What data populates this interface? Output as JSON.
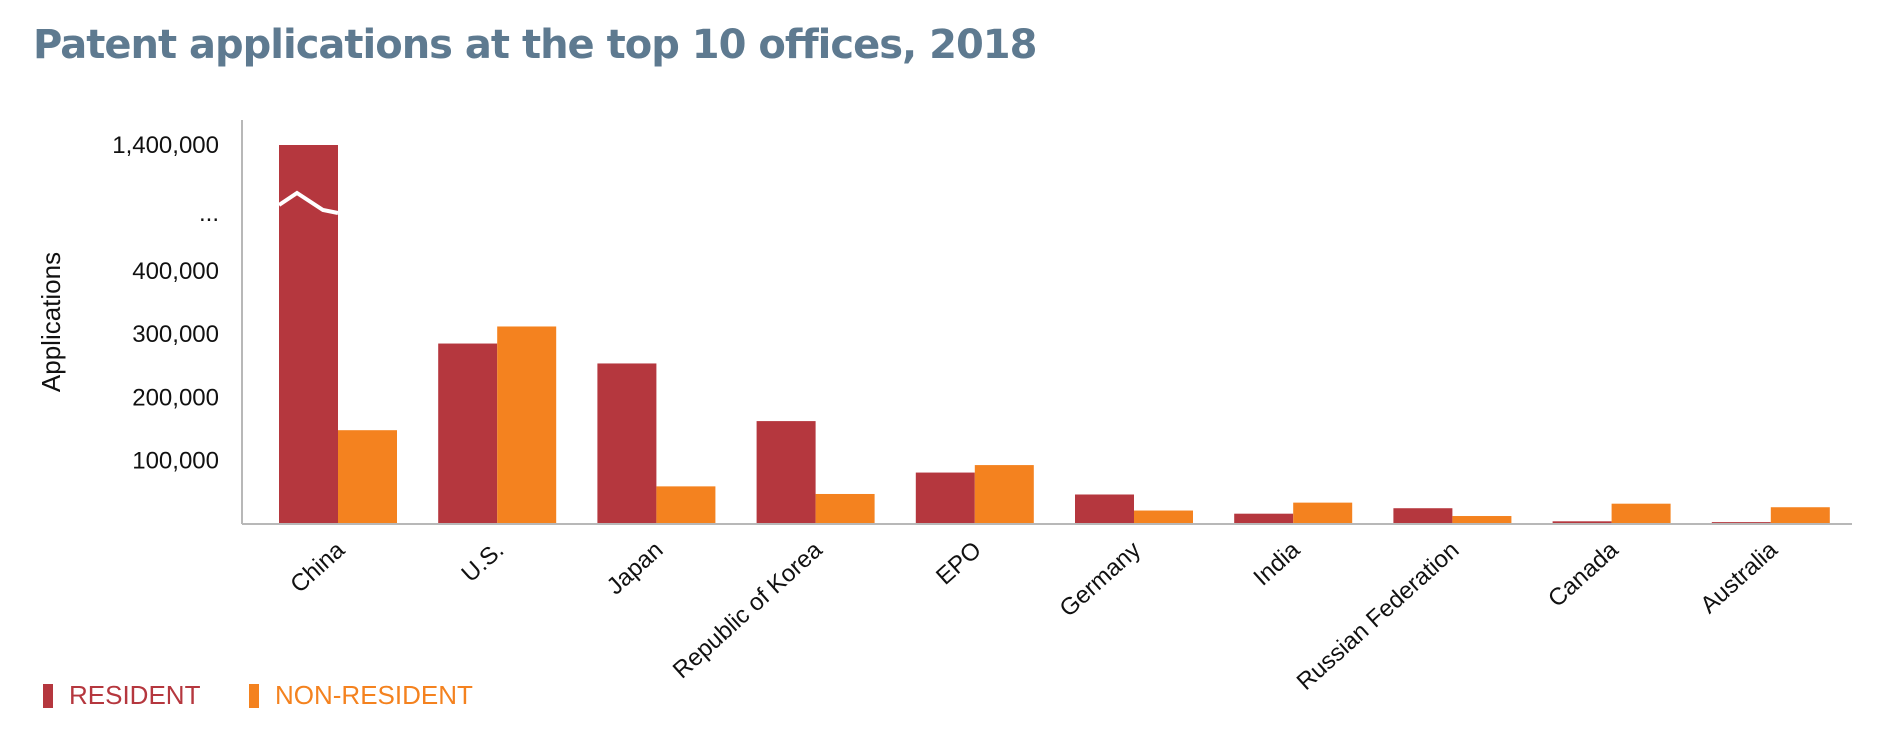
{
  "chart_data": {
    "type": "bar",
    "title": "Patent applications at the top 10 offices, 2018",
    "ylabel": "Applications",
    "xlabel": "",
    "categories": [
      "China",
      "U.S.",
      "Japan",
      "Republic of Korea",
      "EPO",
      "Germany",
      "India",
      "Russian Federation",
      "Canada",
      "Australia"
    ],
    "series": [
      {
        "name": "RESIDENT",
        "color": "#b5373e",
        "values": [
          1393815,
          285095,
          253630,
          162561,
          81264,
          46617,
          16289,
          24926,
          4261,
          2987
        ]
      },
      {
        "name": "NON-RESIDENT",
        "color": "#f4821f",
        "values": [
          148187,
          312046,
          59451,
          47431,
          93076,
          21278,
          33766,
          12605,
          32092,
          26486
        ]
      }
    ],
    "yticks": [
      "100,000",
      "200,000",
      "300,000",
      "400,000",
      "...",
      "1,400,000"
    ],
    "axis_break": true,
    "ylim": [
      0,
      1400000
    ],
    "legend_position": "bottom-left",
    "grid": false
  }
}
